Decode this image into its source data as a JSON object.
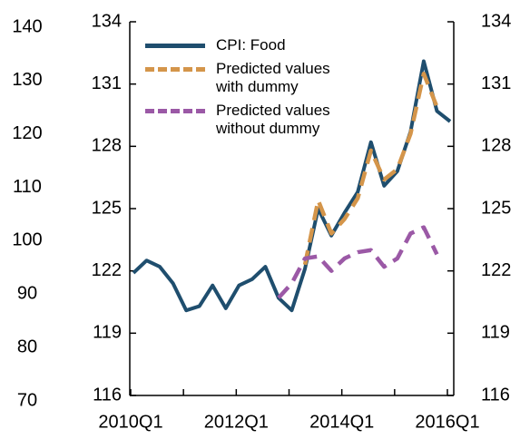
{
  "chart_data": {
    "type": "line",
    "categories": [
      "2010Q1",
      null,
      null,
      null,
      null,
      null,
      null,
      null,
      "2012Q1",
      null,
      null,
      null,
      null,
      null,
      null,
      null,
      "2014Q1",
      null,
      null,
      null,
      null,
      null,
      null,
      null,
      "2016Q1"
    ],
    "series": [
      {
        "name": "CPI: Food",
        "color": "#1f4e6e",
        "style": "solid",
        "values": [
          121.9,
          122.5,
          122.2,
          121.4,
          120.1,
          120.3,
          121.3,
          120.2,
          121.3,
          121.6,
          122.2,
          120.7,
          120.1,
          122.1,
          125.0,
          123.7,
          124.8,
          125.8,
          128.2,
          126.1,
          126.8,
          128.7,
          132.1,
          129.7,
          129.2
        ]
      },
      {
        "name": "Predicted values\nwith dummy",
        "color": "#d4954a",
        "style": "dashed",
        "values": [
          null,
          null,
          null,
          null,
          null,
          null,
          null,
          null,
          null,
          null,
          null,
          null,
          null,
          122.3,
          125.4,
          123.8,
          124.5,
          125.5,
          127.8,
          126.4,
          126.9,
          128.6,
          131.5,
          129.9,
          null
        ]
      },
      {
        "name": "Predicted values\nwithout dummy",
        "color": "#9b59a6",
        "style": "dashed",
        "values": [
          null,
          null,
          null,
          null,
          null,
          null,
          null,
          null,
          null,
          null,
          null,
          120.7,
          121.4,
          122.6,
          122.7,
          122.0,
          122.6,
          122.9,
          123.0,
          122.2,
          122.6,
          123.8,
          124.1,
          122.8,
          null
        ]
      }
    ],
    "ylim": [
      116,
      134
    ],
    "yticks": [
      116,
      119,
      122,
      125,
      128,
      131,
      134
    ],
    "y2lim": [
      116,
      134
    ],
    "y2ticks": [
      116,
      119,
      122,
      125,
      128,
      131,
      134
    ],
    "y3lim": [
      70,
      140
    ],
    "y3ticks": [
      70,
      80,
      90,
      100,
      110,
      120,
      130,
      140
    ]
  }
}
